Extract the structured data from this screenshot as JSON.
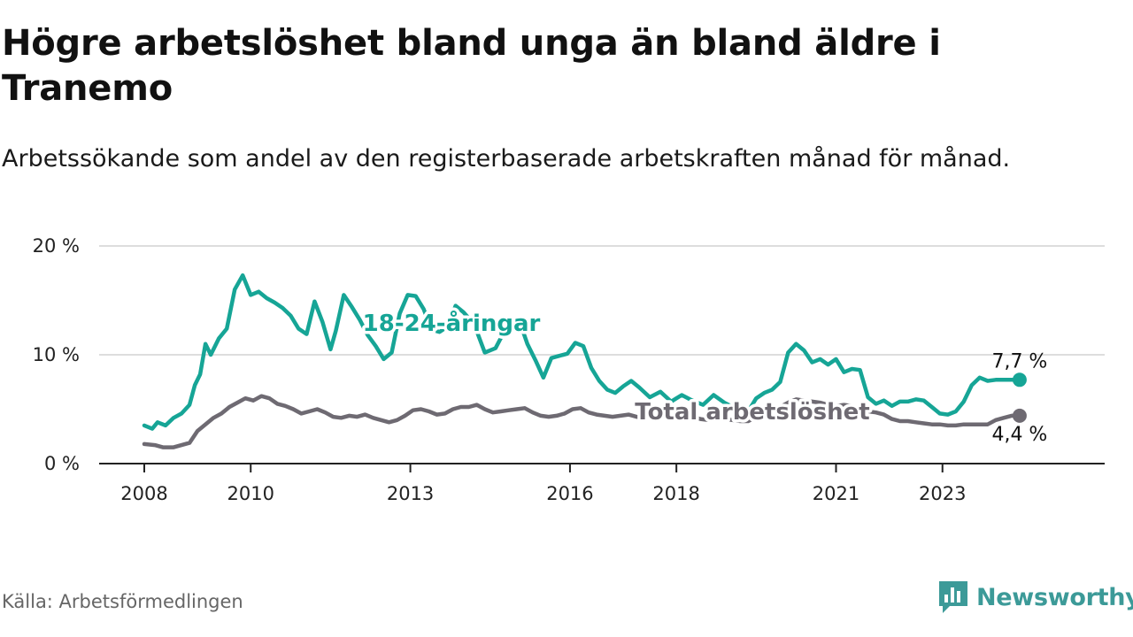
{
  "title": "Högre arbetslöshet bland unga än bland äldre i Tranemo",
  "subtitle": "Arbetssökande som andel av den registerbaserade arbetskraften månad för månad.",
  "source": "Källa: Arbetsförmedlingen",
  "brand": {
    "name": "Newsworthy",
    "color": "#3c9a98"
  },
  "colors": {
    "youth": "#16a596",
    "total": "#6e6a72",
    "grid": "#dddddd",
    "axis": "#222222"
  },
  "chart_data": {
    "type": "line",
    "title": "Högre arbetslöshet bland unga än bland äldre i Tranemo",
    "xlabel": "",
    "ylabel": "",
    "ylim": [
      0,
      20
    ],
    "yticks": [
      0,
      10,
      20
    ],
    "ytick_labels": [
      "0 %",
      "10 %",
      "20 %"
    ],
    "xlim": [
      2008.0,
      2025.2
    ],
    "xticks": [
      2008,
      2010,
      2013,
      2016,
      2018,
      2021,
      2023
    ],
    "xtick_labels": [
      "2008",
      "2010",
      "2013",
      "2016",
      "2018",
      "2021",
      "2023"
    ],
    "grid": true,
    "series": [
      {
        "name": "18-24-åringar",
        "label": "18-24-åringar",
        "end_label": "7,7 %",
        "end_value": 7.7,
        "x": [
          2008.0,
          2008.15,
          2008.25,
          2008.4,
          2008.55,
          2008.7,
          2008.85,
          2008.95,
          2009.05,
          2009.15,
          2009.25,
          2009.4,
          2009.55,
          2009.7,
          2009.85,
          2010.0,
          2010.15,
          2010.3,
          2010.45,
          2010.6,
          2010.75,
          2010.9,
          2011.05,
          2011.2,
          2011.35,
          2011.5,
          2011.6,
          2011.75,
          2011.9,
          2012.05,
          2012.2,
          2012.35,
          2012.5,
          2012.65,
          2012.8,
          2012.95,
          2013.1,
          2013.25,
          2013.4,
          2013.55,
          2013.7,
          2013.85,
          2014.0,
          2014.2,
          2014.4,
          2014.6,
          2014.75,
          2014.9,
          2015.05,
          2015.2,
          2015.35,
          2015.5,
          2015.65,
          2015.8,
          2015.95,
          2016.1,
          2016.25,
          2016.4,
          2016.55,
          2016.7,
          2016.85,
          2017.0,
          2017.15,
          2017.3,
          2017.5,
          2017.7,
          2017.9,
          2018.1,
          2018.3,
          2018.5,
          2018.7,
          2018.9,
          2019.1,
          2019.3,
          2019.5,
          2019.65,
          2019.8,
          2019.95,
          2020.1,
          2020.25,
          2020.4,
          2020.55,
          2020.7,
          2020.85,
          2021.0,
          2021.15,
          2021.3,
          2021.45,
          2021.6,
          2021.75,
          2021.9,
          2022.05,
          2022.2,
          2022.35,
          2022.5,
          2022.65,
          2022.8,
          2022.95,
          2023.1,
          2023.25,
          2023.4,
          2023.55,
          2023.7,
          2023.85,
          2024.0,
          2024.15,
          2024.25,
          2024.35,
          2024.45
        ],
        "values": [
          3.5,
          3.2,
          3.8,
          3.5,
          4.2,
          4.6,
          5.4,
          7.2,
          8.2,
          11.0,
          10.0,
          11.5,
          12.4,
          16.0,
          17.3,
          15.5,
          15.8,
          15.2,
          14.8,
          14.3,
          13.6,
          12.4,
          11.9,
          14.9,
          13.0,
          10.5,
          12.2,
          15.5,
          14.4,
          13.2,
          11.8,
          10.8,
          9.6,
          10.2,
          13.8,
          15.5,
          15.4,
          14.2,
          12.3,
          12.1,
          12.6,
          14.5,
          13.9,
          12.8,
          10.2,
          10.6,
          12.0,
          12.9,
          13.1,
          11.0,
          9.5,
          7.9,
          9.7,
          9.9,
          10.1,
          11.1,
          10.8,
          8.8,
          7.6,
          6.8,
          6.5,
          7.1,
          7.6,
          7.0,
          6.1,
          6.6,
          5.7,
          6.3,
          5.8,
          5.4,
          6.3,
          5.6,
          5.1,
          4.4,
          6.0,
          6.5,
          6.8,
          7.5,
          10.2,
          11.0,
          10.4,
          9.3,
          9.6,
          9.1,
          9.6,
          8.4,
          8.7,
          8.6,
          6.1,
          5.5,
          5.8,
          5.3,
          5.7,
          5.7,
          5.9,
          5.8,
          5.2,
          4.6,
          4.5,
          4.8,
          5.7,
          7.2,
          7.9,
          7.6,
          7.7,
          7.7,
          7.7,
          7.7,
          7.7
        ]
      },
      {
        "name": "Total arbetslöshet",
        "label": "Total arbetslöshet",
        "end_label": "4,4 %",
        "end_value": 4.4,
        "x": [
          2008.0,
          2008.2,
          2008.35,
          2008.55,
          2008.7,
          2008.85,
          2009.0,
          2009.15,
          2009.3,
          2009.45,
          2009.6,
          2009.75,
          2009.9,
          2010.05,
          2010.2,
          2010.35,
          2010.5,
          2010.65,
          2010.8,
          2010.95,
          2011.1,
          2011.25,
          2011.4,
          2011.55,
          2011.7,
          2011.85,
          2012.0,
          2012.15,
          2012.3,
          2012.45,
          2012.6,
          2012.75,
          2012.9,
          2013.05,
          2013.2,
          2013.35,
          2013.5,
          2013.65,
          2013.8,
          2013.95,
          2014.1,
          2014.25,
          2014.4,
          2014.55,
          2014.7,
          2014.85,
          2015.0,
          2015.15,
          2015.3,
          2015.45,
          2015.6,
          2015.75,
          2015.9,
          2016.05,
          2016.2,
          2016.35,
          2016.5,
          2016.65,
          2016.8,
          2016.95,
          2017.1,
          2017.25,
          2017.4,
          2017.55,
          2017.7,
          2017.85,
          2018.0,
          2018.15,
          2018.3,
          2018.45,
          2018.6,
          2018.75,
          2018.9,
          2019.05,
          2019.2,
          2019.35,
          2019.5,
          2019.65,
          2019.8,
          2019.95,
          2020.1,
          2020.25,
          2020.4,
          2020.55,
          2020.7,
          2020.85,
          2021.0,
          2021.15,
          2021.3,
          2021.45,
          2021.6,
          2021.75,
          2021.9,
          2022.05,
          2022.2,
          2022.35,
          2022.5,
          2022.65,
          2022.8,
          2022.95,
          2023.1,
          2023.25,
          2023.4,
          2023.55,
          2023.7,
          2023.85,
          2024.0,
          2024.15,
          2024.3,
          2024.45
        ],
        "values": [
          1.8,
          1.7,
          1.5,
          1.5,
          1.7,
          1.9,
          3.0,
          3.6,
          4.2,
          4.6,
          5.2,
          5.6,
          6.0,
          5.8,
          6.2,
          6.0,
          5.5,
          5.3,
          5.0,
          4.6,
          4.8,
          5.0,
          4.7,
          4.3,
          4.2,
          4.4,
          4.3,
          4.5,
          4.2,
          4.0,
          3.8,
          4.0,
          4.4,
          4.9,
          5.0,
          4.8,
          4.5,
          4.6,
          5.0,
          5.2,
          5.2,
          5.4,
          5.0,
          4.7,
          4.8,
          4.9,
          5.0,
          5.1,
          4.7,
          4.4,
          4.3,
          4.4,
          4.6,
          5.0,
          5.1,
          4.7,
          4.5,
          4.4,
          4.3,
          4.4,
          4.5,
          4.3,
          4.2,
          4.3,
          4.4,
          4.2,
          4.1,
          4.2,
          4.3,
          4.1,
          4.0,
          4.2,
          4.1,
          4.0,
          3.9,
          3.9,
          4.3,
          4.6,
          4.8,
          5.2,
          5.6,
          5.9,
          5.8,
          5.7,
          5.6,
          5.4,
          5.3,
          5.4,
          5.3,
          4.9,
          4.8,
          4.7,
          4.5,
          4.1,
          3.9,
          3.9,
          3.8,
          3.7,
          3.6,
          3.6,
          3.5,
          3.5,
          3.6,
          3.6,
          3.6,
          3.6,
          4.0,
          4.2,
          4.4,
          4.4
        ]
      }
    ]
  }
}
